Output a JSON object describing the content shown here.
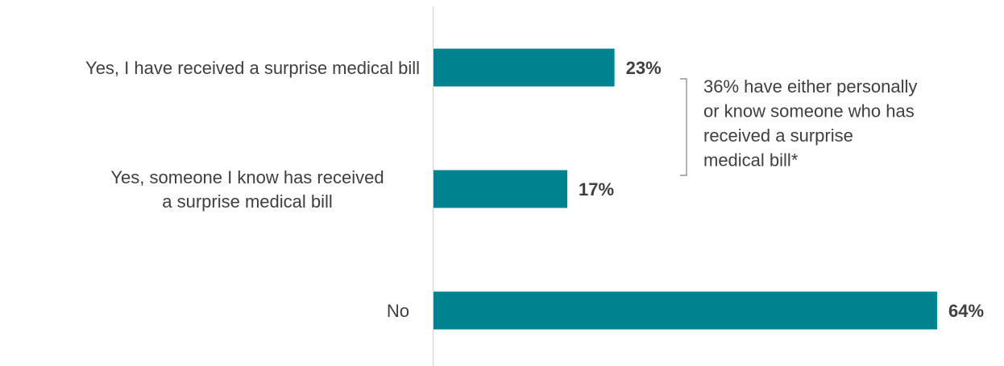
{
  "chart_data": {
    "type": "bar",
    "orientation": "horizontal",
    "categories": [
      [
        "Yes, I have received a surprise medical bill"
      ],
      [
        "Yes, someone I know has received",
        "a surprise medical bill"
      ],
      [
        "No"
      ]
    ],
    "values": [
      23,
      17,
      64
    ],
    "value_labels": [
      "23%",
      "17%",
      "64%"
    ],
    "xlim": [
      0,
      64
    ],
    "bar_color": "#00838f",
    "axis_color": "#d9d9d9",
    "annotation": {
      "lines": [
        "36% have either personally",
        "or know someone who has",
        "received a surprise",
        "medical bill*"
      ],
      "spans_categories": [
        0,
        1
      ]
    },
    "grid": false,
    "legend": "none"
  }
}
